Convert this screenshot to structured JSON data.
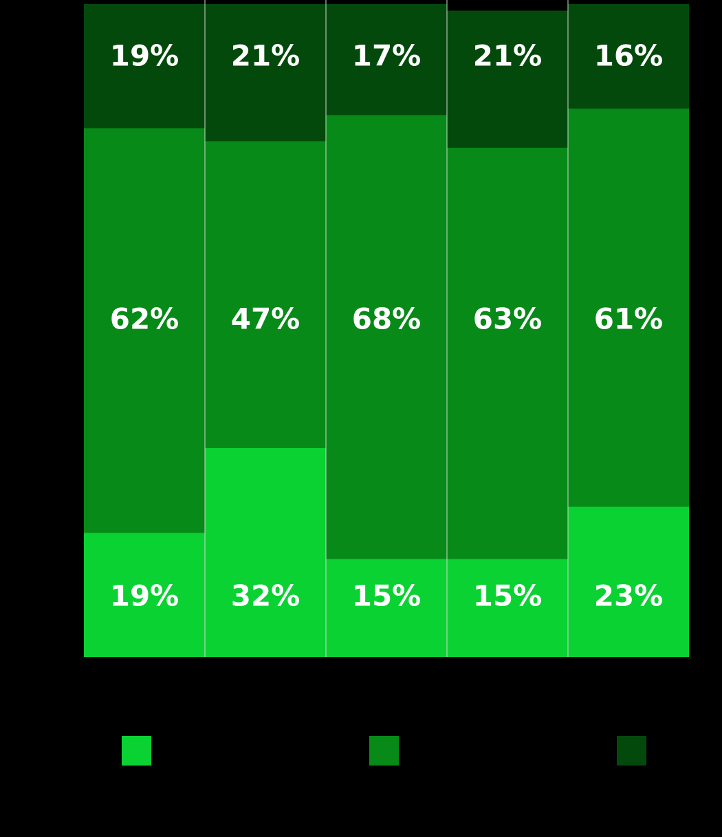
{
  "chart_data": {
    "type": "stacked-bar",
    "categories": [
      null,
      null,
      null,
      null,
      null
    ],
    "ylim": [
      0,
      100
    ],
    "series": [
      {
        "color": "#0ad232",
        "values": [
          19,
          32,
          15,
          15,
          23
        ],
        "value_labels": [
          "19%",
          "32%",
          "15%",
          "15%",
          "23%"
        ]
      },
      {
        "color": "#078a18",
        "values": [
          62,
          47,
          68,
          63,
          61
        ],
        "value_labels": [
          "62%",
          "47%",
          "68%",
          "63%",
          "61%"
        ]
      },
      {
        "color": "#04490c",
        "values": [
          19,
          21,
          17,
          21,
          16
        ],
        "value_labels": [
          "19%",
          "21%",
          "17%",
          "21%",
          "16%"
        ]
      }
    ]
  }
}
